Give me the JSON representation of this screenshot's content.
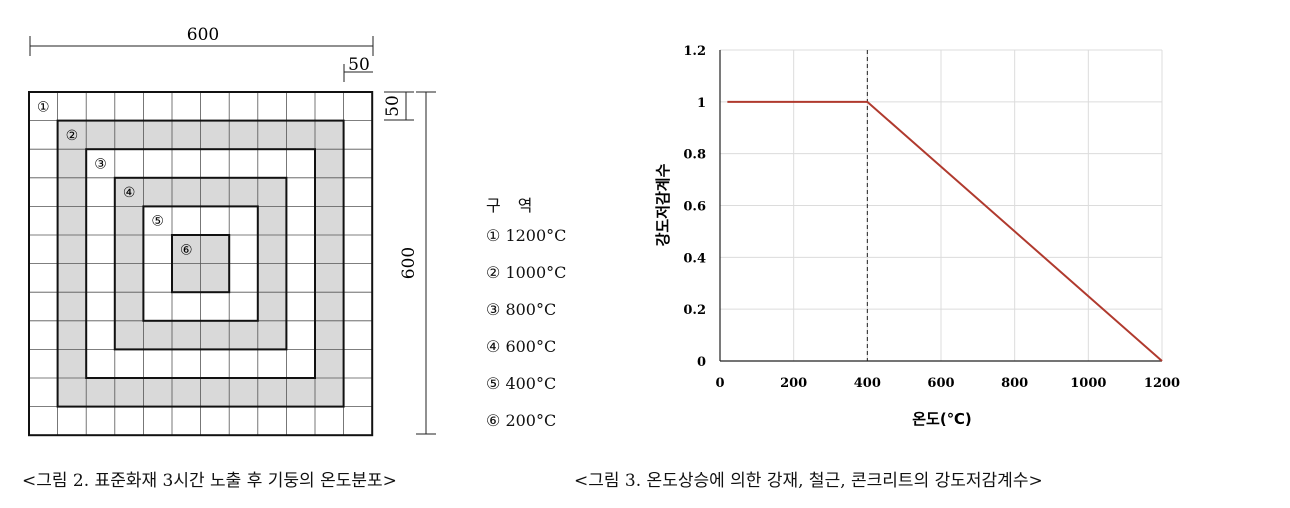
{
  "figure2": {
    "dim_top": "600",
    "dim_cell": "50",
    "dim_right_cell": "50",
    "dim_side": "600",
    "zone_marks": [
      "①",
      "②",
      "③",
      "④",
      "⑤",
      "⑥"
    ],
    "legend_title": "구 역",
    "legend": [
      {
        "mark": "①",
        "temp": "1200°C"
      },
      {
        "mark": "②",
        "temp": "1000°C"
      },
      {
        "mark": "③",
        "temp": "800°C"
      },
      {
        "mark": "④",
        "temp": "600°C"
      },
      {
        "mark": "⑤",
        "temp": "400°C"
      },
      {
        "mark": "⑥",
        "temp": "200°C"
      }
    ],
    "caption": "<그림 2. 표준화재 3시간 노출 후 기둥의 온도분포>"
  },
  "figure3": {
    "caption": "<그림 3. 온도상승에 의한 강재, 철근, 콘크리트의 강도저감계수>"
  },
  "chart_data": {
    "type": "line",
    "xlabel": "온도(℃)",
    "ylabel": "강도저감계수",
    "xlim": [
      0,
      1200
    ],
    "ylim": [
      0,
      1.2
    ],
    "xticks": [
      "0",
      "200",
      "400",
      "600",
      "800",
      "1000",
      "1200"
    ],
    "yticks": [
      "0",
      "0.2",
      "0.4",
      "0.6",
      "0.8",
      "1",
      "1.2"
    ],
    "grid": true,
    "series": [
      {
        "x": [
          20,
          400,
          1200
        ],
        "y": [
          1,
          1,
          0
        ],
        "color": "#b03a2e"
      }
    ],
    "reference_line": {
      "x": 400,
      "style": "dashed"
    }
  }
}
